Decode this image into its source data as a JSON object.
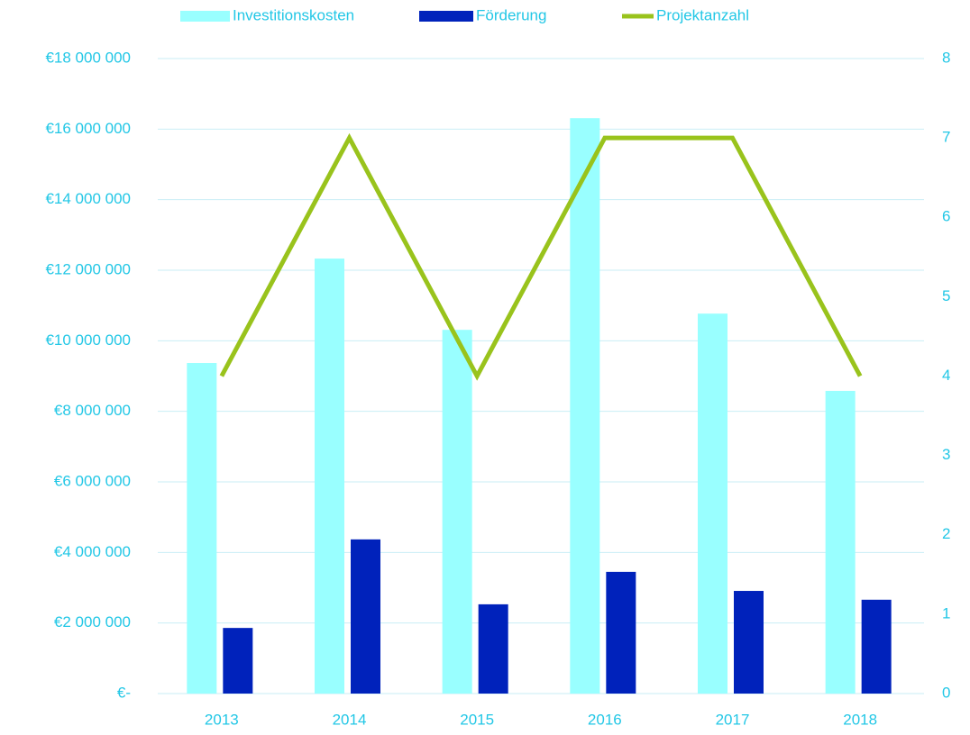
{
  "chart_data": {
    "type": "bar",
    "categories": [
      "2013",
      "2014",
      "2015",
      "2016",
      "2017",
      "2018"
    ],
    "series": [
      {
        "name": "Investitionskosten",
        "color": "#99ffff",
        "values": [
          9370000,
          12330000,
          10310000,
          16310000,
          10770000,
          8580000
        ]
      },
      {
        "name": "Förderung",
        "color": "#0022bb",
        "values": [
          1860000,
          4370000,
          2530000,
          3450000,
          2910000,
          2660000
        ]
      },
      {
        "name": "Projektanzahl",
        "type": "line",
        "axis": "y2",
        "color": "#99c31c",
        "values": [
          4,
          7,
          4,
          7,
          7,
          4
        ]
      }
    ],
    "ylim": [
      0,
      18000000
    ],
    "yticks": [
      {
        "value": 0,
        "label": "€-"
      },
      {
        "value": 2000000,
        "label": "€2 000 000"
      },
      {
        "value": 4000000,
        "label": "€4 000 000"
      },
      {
        "value": 6000000,
        "label": "€6 000 000"
      },
      {
        "value": 8000000,
        "label": "€8 000 000"
      },
      {
        "value": 10000000,
        "label": "€10 000 000"
      },
      {
        "value": 12000000,
        "label": "€12 000 000"
      },
      {
        "value": 14000000,
        "label": "€14 000 000"
      },
      {
        "value": 16000000,
        "label": "€16 000 000"
      },
      {
        "value": 18000000,
        "label": "€18 000 000"
      }
    ],
    "y2lim": [
      0,
      8
    ],
    "y2ticks": [
      0,
      1,
      2,
      3,
      4,
      5,
      6,
      7,
      8
    ],
    "grid": true,
    "legend": "top"
  }
}
